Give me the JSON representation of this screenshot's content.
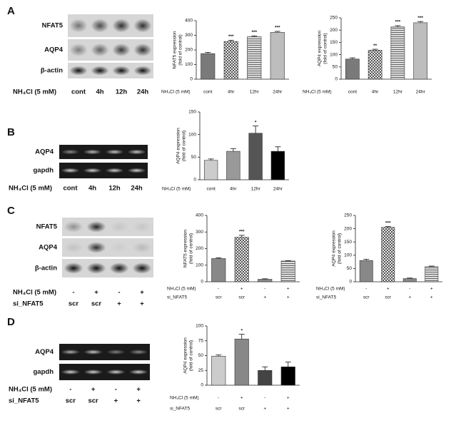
{
  "blots": [
    {
      "panel": "A",
      "rows": [
        "NFAT5",
        "AQP4",
        "β-actin"
      ],
      "condition_rows": [
        {
          "name": "NH₄Cl (5 mM)",
          "labels": [
            "cont",
            "4h",
            "12h",
            "24h"
          ]
        }
      ]
    },
    {
      "panel": "B",
      "rows": [
        "AQP4",
        "gapdh"
      ],
      "condition_rows": [
        {
          "name": "NH₄Cl (5 mM)",
          "labels": [
            "cont",
            "4h",
            "12h",
            "24h"
          ]
        }
      ]
    },
    {
      "panel": "C",
      "rows": [
        "NFAT5",
        "AQP4",
        "β-actin"
      ],
      "condition_rows": [
        {
          "name": "NH₄Cl (5 mM)",
          "labels": [
            "-",
            "+",
            "-",
            "+"
          ]
        },
        {
          "name": "si_NFAT5",
          "labels": [
            "scr",
            "scr",
            "+",
            "+"
          ]
        }
      ]
    },
    {
      "panel": "D",
      "rows": [
        "AQP4",
        "gapdh"
      ],
      "condition_rows": [
        {
          "name": "NH₄Cl (5 mM)",
          "labels": [
            "-",
            "+",
            "-",
            "+"
          ]
        },
        {
          "name": "si_NFAT5",
          "labels": [
            "scr",
            "scr",
            "+",
            "+"
          ]
        }
      ]
    }
  ],
  "chart_data": [
    {
      "type": "bar",
      "ylabel": [
        "NFAT5 expression",
        "(fold of control)"
      ],
      "category_row_name": "NH₄Cl (5 mM)",
      "categories": [
        "cont",
        "4hr",
        "12hr",
        "24hr"
      ],
      "values": [
        175,
        258,
        290,
        320
      ],
      "errors": [
        8,
        8,
        6,
        7
      ],
      "annotations": [
        null,
        "***",
        "***",
        "***"
      ],
      "colors": [
        "#7a7a7a",
        "#888888",
        "#999999",
        "#bdbdbd"
      ],
      "patterns": [
        "solid",
        "checker",
        "hlines",
        "solid"
      ],
      "ylim": [
        0,
        400
      ],
      "yticks": [
        0,
        100,
        200,
        300,
        400
      ]
    },
    {
      "type": "bar",
      "ylabel": [
        "AQP4 expression",
        "(fold of control)"
      ],
      "category_row_name": "NH₄Cl (5 mM)",
      "categories": [
        "cont",
        "4hr",
        "12hr",
        "24hr"
      ],
      "values": [
        82,
        118,
        213,
        230
      ],
      "errors": [
        5,
        4,
        5,
        5
      ],
      "annotations": [
        null,
        "**",
        "***",
        "***"
      ],
      "colors": [
        "#7a7a7a",
        "#888888",
        "#999999",
        "#bdbdbd"
      ],
      "patterns": [
        "solid",
        "checker",
        "hlines",
        "solid"
      ],
      "ylim": [
        0,
        250
      ],
      "yticks": [
        0,
        50,
        100,
        150,
        200,
        250
      ]
    },
    {
      "type": "bar",
      "ylabel": [
        "AQP4 expression",
        "(fold of control)"
      ],
      "category_row_name": "NH₄Cl (5 mM)",
      "categories": [
        "cont",
        "4hr",
        "12hr",
        "24hr"
      ],
      "values": [
        43,
        63,
        103,
        63
      ],
      "errors": [
        3,
        6,
        16,
        10
      ],
      "annotations": [
        null,
        null,
        "*",
        null
      ],
      "colors": [
        "#cccccc",
        "#999999",
        "#555555",
        "#000000"
      ],
      "patterns": [
        "solid",
        "solid",
        "solid",
        "solid"
      ],
      "ylim": [
        0,
        150
      ],
      "yticks": [
        0,
        50,
        100,
        150
      ]
    },
    {
      "type": "bar",
      "ylabel": [
        "NFAT5 expression",
        "(fold of control)"
      ],
      "category_row_name": "NH₄Cl (5 mM)",
      "categories": [
        "-",
        "+",
        "-",
        "+"
      ],
      "second_row": {
        "name": "si_NFAT5",
        "labels": [
          "scr",
          "scr",
          "+",
          "+"
        ]
      },
      "values": [
        140,
        268,
        15,
        125
      ],
      "errors": [
        5,
        12,
        3,
        2
      ],
      "annotations": [
        null,
        "***",
        null,
        null
      ],
      "colors": [
        "#888888",
        "#888888",
        "#888888",
        "#cccccc"
      ],
      "patterns": [
        "solid",
        "checker",
        "solid",
        "hlines"
      ],
      "ylim": [
        0,
        400
      ],
      "yticks": [
        0,
        100,
        200,
        300,
        400
      ]
    },
    {
      "type": "bar",
      "ylabel": [
        "AQP4 expression",
        "(fold of control)"
      ],
      "category_row_name": "NH₄Cl (5 mM)",
      "categories": [
        "-",
        "+",
        "-",
        "+"
      ],
      "second_row": {
        "name": "si_NFAT5",
        "labels": [
          "scr",
          "scr",
          "+",
          "+"
        ]
      },
      "values": [
        80,
        205,
        12,
        57
      ],
      "errors": [
        5,
        3,
        2,
        2
      ],
      "annotations": [
        null,
        "***",
        null,
        null
      ],
      "colors": [
        "#888888",
        "#888888",
        "#888888",
        "#cccccc"
      ],
      "patterns": [
        "solid",
        "checker",
        "solid",
        "hlines"
      ],
      "ylim": [
        0,
        250
      ],
      "yticks": [
        0,
        50,
        100,
        150,
        200,
        250
      ]
    },
    {
      "type": "bar",
      "ylabel": [
        "AQP4 expression",
        "(fold of control)"
      ],
      "category_row_name": "NH₄Cl (5 mM)",
      "categories": [
        "-",
        "+",
        "-",
        "+"
      ],
      "second_row": {
        "name": "si_NFAT5",
        "labels": [
          "scr",
          "scr",
          "+",
          "+"
        ]
      },
      "values": [
        49,
        78,
        25,
        31
      ],
      "errors": [
        2,
        8,
        6,
        8
      ],
      "annotations": [
        null,
        "*",
        null,
        null
      ],
      "colors": [
        "#cccccc",
        "#888888",
        "#444444",
        "#000000"
      ],
      "patterns": [
        "solid",
        "solid",
        "solid",
        "solid"
      ],
      "ylim": [
        0,
        100
      ],
      "yticks": [
        0,
        25,
        50,
        75,
        100
      ]
    }
  ]
}
